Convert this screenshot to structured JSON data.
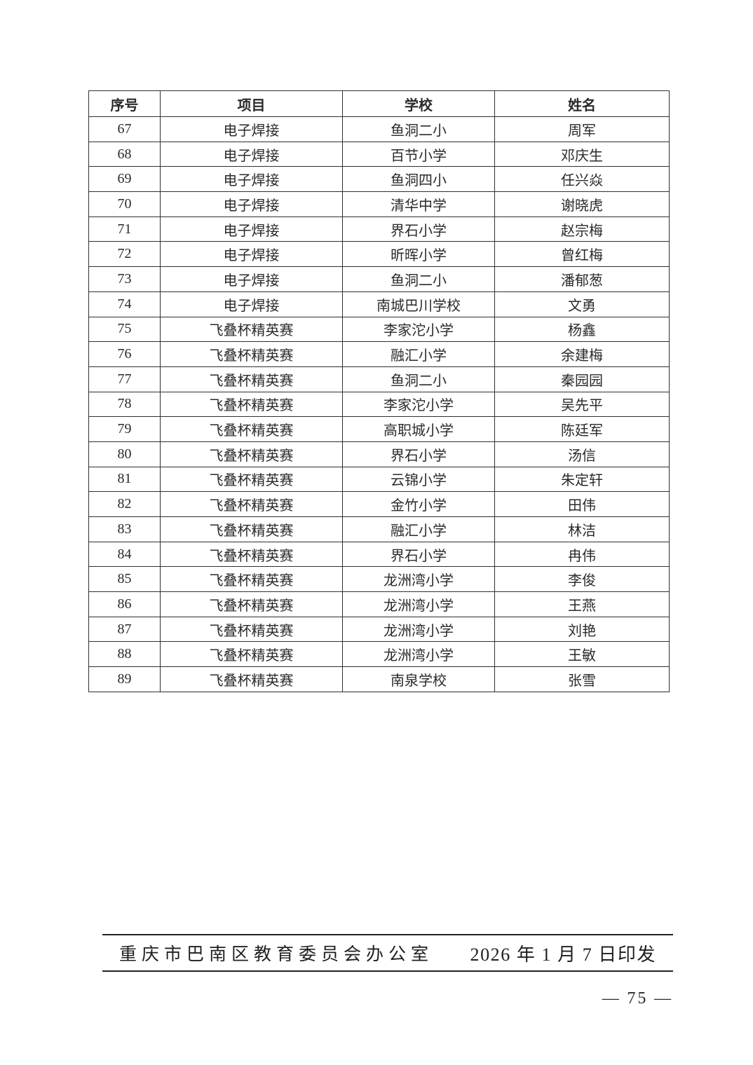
{
  "table": {
    "headers": [
      "序号",
      "项目",
      "学校",
      "姓名"
    ],
    "rows": [
      [
        "67",
        "电子焊接",
        "鱼洞二小",
        "周军"
      ],
      [
        "68",
        "电子焊接",
        "百节小学",
        "邓庆生"
      ],
      [
        "69",
        "电子焊接",
        "鱼洞四小",
        "任兴焱"
      ],
      [
        "70",
        "电子焊接",
        "清华中学",
        "谢晓虎"
      ],
      [
        "71",
        "电子焊接",
        "界石小学",
        "赵宗梅"
      ],
      [
        "72",
        "电子焊接",
        "昕晖小学",
        "曾红梅"
      ],
      [
        "73",
        "电子焊接",
        "鱼洞二小",
        "潘郁葱"
      ],
      [
        "74",
        "电子焊接",
        "南城巴川学校",
        "文勇"
      ],
      [
        "75",
        "飞叠杯精英赛",
        "李家沱小学",
        "杨鑫"
      ],
      [
        "76",
        "飞叠杯精英赛",
        "融汇小学",
        "余建梅"
      ],
      [
        "77",
        "飞叠杯精英赛",
        "鱼洞二小",
        "秦园园"
      ],
      [
        "78",
        "飞叠杯精英赛",
        "李家沱小学",
        "吴先平"
      ],
      [
        "79",
        "飞叠杯精英赛",
        "高职城小学",
        "陈廷军"
      ],
      [
        "80",
        "飞叠杯精英赛",
        "界石小学",
        "汤信"
      ],
      [
        "81",
        "飞叠杯精英赛",
        "云锦小学",
        "朱定轩"
      ],
      [
        "82",
        "飞叠杯精英赛",
        "金竹小学",
        "田伟"
      ],
      [
        "83",
        "飞叠杯精英赛",
        "融汇小学",
        "林洁"
      ],
      [
        "84",
        "飞叠杯精英赛",
        "界石小学",
        "冉伟"
      ],
      [
        "85",
        "飞叠杯精英赛",
        "龙洲湾小学",
        "李俊"
      ],
      [
        "86",
        "飞叠杯精英赛",
        "龙洲湾小学",
        "王燕"
      ],
      [
        "87",
        "飞叠杯精英赛",
        "龙洲湾小学",
        "刘艳"
      ],
      [
        "88",
        "飞叠杯精英赛",
        "龙洲湾小学",
        "王敏"
      ],
      [
        "89",
        "飞叠杯精英赛",
        "南泉学校",
        "张雪"
      ]
    ]
  },
  "footer": {
    "issuer": "重庆市巴南区教育委员会办公室",
    "print_date": "2026 年 1 月 7 日印发",
    "page_number": "— 75 —"
  },
  "colors": {
    "page_background": "#ffffff",
    "text": "#2a2a2a",
    "table_border": "#2f2f2f",
    "footer_rule": "#232323"
  }
}
